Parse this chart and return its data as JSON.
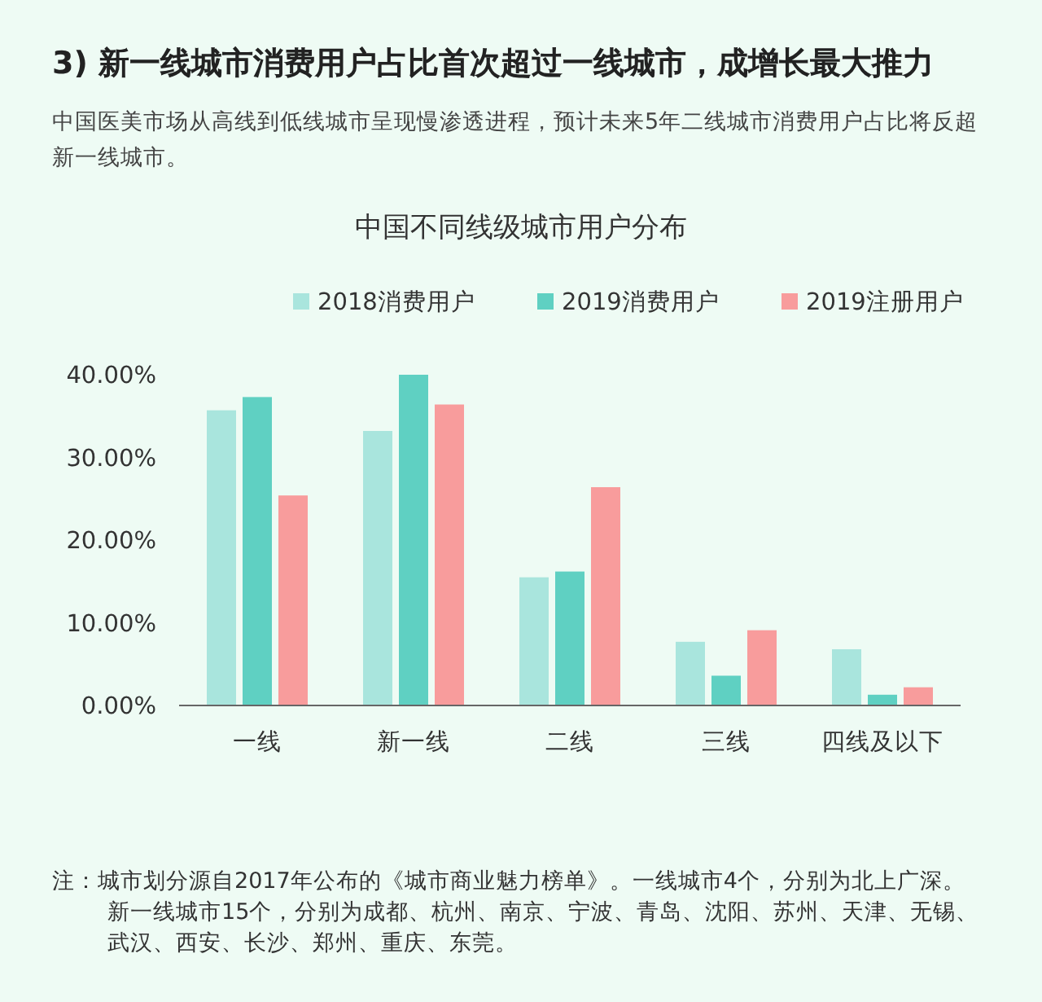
{
  "chart_data": {
    "type": "bar",
    "title": "3) 新一线城市消费用户占比首次超过一线城市，成增长最大推力",
    "subtitle": "中国医美市场从高线到低线城市呈现慢渗透进程，预计未来5年二线城市消费用户占比将反超新一线城市。",
    "annotations": [
      "中国不同线级城市用户分布",
      "注：城市划分源自2017年公布的《城市商业魅力榜单》。一线城市4个，分别为北上广深。新一线城市15个，分别为成都、杭州、南京、宁波、青岛、沈阳、苏州、天津、无锡、武汉、西安、长沙、郑州、重庆、东莞。"
    ],
    "categories": [
      "一线",
      "新一线",
      "二线",
      "三线",
      "四线及以下"
    ],
    "series": [
      {
        "name": "2018消费用户",
        "color": "#a9e5dd",
        "values": [
          35.7,
          33.2,
          15.5,
          7.7,
          6.8
        ]
      },
      {
        "name": "2019消费用户",
        "color": "#5fd0c2",
        "values": [
          37.3,
          40,
          16.2,
          3.6,
          1.3
        ]
      },
      {
        "name": "2019注册用户",
        "color": "#f89c9c",
        "values": [
          25.4,
          36.4,
          26.4,
          9.1,
          2.2
        ]
      }
    ],
    "ylim": [
      0,
      40
    ],
    "yticks": [
      {
        "value": 0,
        "label": "0.00%"
      },
      {
        "value": 10,
        "label": "10.00%"
      },
      {
        "value": 20,
        "label": "20.00%"
      },
      {
        "value": 30,
        "label": "30.00%"
      },
      {
        "value": 40,
        "label": "40.00%"
      }
    ],
    "legend": "top",
    "grid": false
  }
}
